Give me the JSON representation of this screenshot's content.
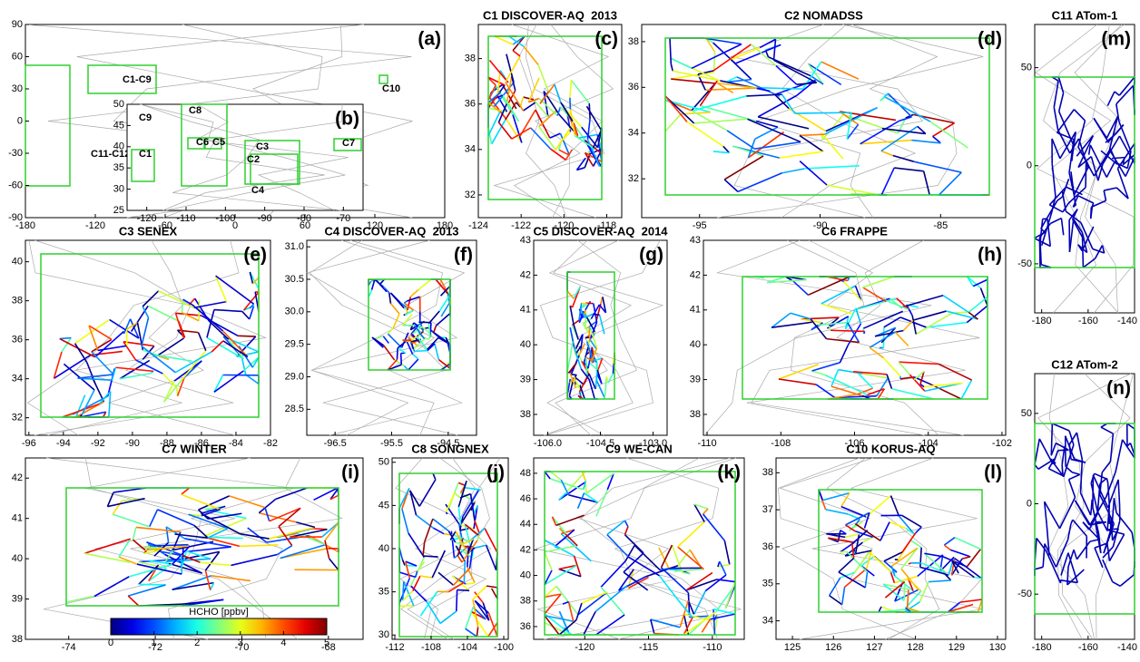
{
  "panels": [
    {
      "letter": "(a)",
      "xlim": [
        -180,
        180
      ],
      "ylim": [
        -90,
        90
      ],
      "xticks": [
        -180,
        -120,
        -60,
        0,
        60,
        120,
        180
      ],
      "yticks": [
        -90,
        -60,
        -30,
        0,
        30,
        60,
        90
      ],
      "boxes": [
        "C1-C9",
        "C10",
        "C11-C12"
      ]
    },
    {
      "letter": "(b)",
      "xlim": [
        -125,
        -65
      ],
      "ylim": [
        25,
        50
      ],
      "xticks": [
        -120,
        -110,
        -100,
        -90,
        -80,
        -70
      ],
      "yticks": [
        25,
        30,
        35,
        40,
        45,
        50
      ],
      "boxes": [
        "C9",
        "C8",
        "C6",
        "C5",
        "C1",
        "C3",
        "C2",
        "C7",
        "C4"
      ]
    },
    {
      "title": "C1 DISCOVER-AQ  2013",
      "letter": "(c)",
      "xlim": [
        -124,
        -117.3
      ],
      "ylim": [
        31,
        39.5
      ],
      "xticks": [
        -124,
        -122,
        -120,
        -118
      ],
      "yticks": [
        32,
        34,
        36,
        38
      ]
    },
    {
      "title": "C2 NOMADSS",
      "letter": "(d)",
      "xlim": [
        -97.4,
        -82.3
      ],
      "ylim": [
        30.3,
        38.75
      ],
      "xticks": [
        -95,
        -90,
        -85
      ],
      "yticks": [
        32,
        34,
        36,
        38
      ]
    },
    {
      "title": "C3 SENEX",
      "letter": "(e)",
      "xlim": [
        -96.2,
        -82
      ],
      "ylim": [
        31.1,
        41.1
      ],
      "xticks": [
        -96,
        -94,
        -92,
        -90,
        -88,
        -86,
        -84,
        -82
      ],
      "yticks": [
        32,
        34,
        36,
        38,
        40
      ]
    },
    {
      "title": "C4 DISCOVER-AQ  2013",
      "letter": "(f)",
      "xlim": [
        -97,
        -94
      ],
      "ylim": [
        28.1,
        31.1
      ],
      "xticks": [
        -96.5,
        -95.5,
        -94.5
      ],
      "yticks": [
        28.5,
        {
          "value": 29,
          "label": "29.0"
        },
        29.5,
        {
          "value": 30,
          "label": "30.0"
        },
        30.5,
        {
          "value": 31,
          "label": "31.0"
        }
      ]
    },
    {
      "title": "C5 DISCOVER-AQ  2014",
      "letter": "(g)",
      "xlim": [
        -106.4,
        -102.6
      ],
      "ylim": [
        37.4,
        43
      ],
      "xticks": [
        {
          "value": -106,
          "label": "-106.0"
        },
        -104.5,
        {
          "value": -103,
          "label": "-103.0"
        }
      ],
      "yticks": [
        38,
        39,
        40,
        41,
        42,
        43
      ]
    },
    {
      "title": "C6 FRAPPE",
      "letter": "(h)",
      "xlim": [
        -110.1,
        -101.9
      ],
      "ylim": [
        37.4,
        43
      ],
      "xticks": [
        -110,
        -108,
        -106,
        -104,
        -102
      ],
      "yticks": [
        38,
        39,
        40,
        41,
        42,
        43
      ]
    },
    {
      "title": "C7 WINTER",
      "letter": "(i)",
      "xlim": [
        -75,
        -67.2
      ],
      "ylim": [
        38,
        42.5
      ],
      "xticks": [
        -74,
        -72,
        -70,
        -68
      ],
      "yticks": [
        38,
        39,
        40,
        41,
        42
      ]
    },
    {
      "title": "C8 SONGNEX",
      "letter": "(j)",
      "xlim": [
        -112.3,
        -99.5
      ],
      "ylim": [
        29.5,
        50.5
      ],
      "xticks": [
        -112,
        -108,
        -104,
        -100
      ],
      "yticks": [
        30,
        35,
        40,
        45,
        50
      ]
    },
    {
      "title": "C9 WE-CAN",
      "letter": "(k)",
      "xlim": [
        -124,
        -107.5
      ],
      "ylim": [
        35,
        49.2
      ],
      "xticks": [
        -120,
        -115,
        -110
      ],
      "yticks": [
        36,
        38,
        40,
        42,
        44,
        46,
        48
      ]
    },
    {
      "title": "C10 KORUS-AQ",
      "letter": "(l)",
      "xlim": [
        124.6,
        130.2
      ],
      "ylim": [
        33.5,
        38.4
      ],
      "xticks": [
        125,
        126,
        127,
        128,
        129,
        130
      ],
      "yticks": [
        34,
        35,
        36,
        37,
        38
      ]
    },
    {
      "title": "C11 ATom-1",
      "letter": "(m)",
      "xlim": [
        -183,
        -140
      ],
      "ylim": [
        -75,
        72
      ],
      "xticks": [
        -180,
        -160,
        -140
      ],
      "yticks": [
        -50,
        0,
        50
      ]
    },
    {
      "title": "C12 ATom-2",
      "letter": "(n)",
      "xlim": [
        -183,
        -140
      ],
      "ylim": [
        -75,
        72
      ],
      "xticks": [
        -180,
        -160,
        -140
      ],
      "yticks": [
        -50,
        0,
        50
      ]
    }
  ],
  "colorbar": {
    "label": "HCHO [ppbv]",
    "lim": [
      0,
      5
    ],
    "ticks": [
      0,
      1,
      2,
      3,
      4,
      5
    ]
  }
}
